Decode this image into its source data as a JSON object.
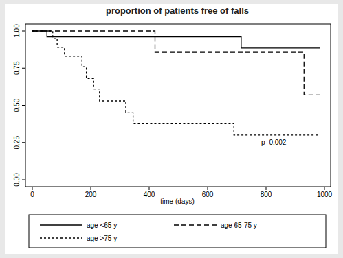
{
  "chart_data": {
    "type": "line",
    "title": "proportion of patients free of falls",
    "x_label": "time (days)",
    "xlim": [
      0,
      1000
    ],
    "ylim": [
      0,
      1
    ],
    "xticks": [
      0,
      200,
      400,
      600,
      800,
      1000
    ],
    "yticks": [
      {
        "value": 0,
        "label": "0.00"
      },
      {
        "value": 0.25,
        "label": "0.25"
      },
      {
        "value": 0.5,
        "label": "0.50"
      },
      {
        "value": 0.75,
        "label": "0.75"
      },
      {
        "value": 1,
        "label": "1.00"
      }
    ],
    "grid": false,
    "legend": "bottom",
    "annotations": [
      "p=0.002"
    ],
    "series": [
      {
        "name": "age <65 y",
        "color": "#000000",
        "line_style": "solid",
        "x": [
          0,
          50,
          715,
          985
        ],
        "values": [
          1,
          0.96,
          0.885,
          0.885
        ]
      },
      {
        "name": "age 65-75 y",
        "color": "#000000",
        "line_style": "dash",
        "x": [
          0,
          420,
          930,
          985
        ],
        "values": [
          1,
          0.857,
          0.57,
          0.57
        ]
      },
      {
        "name": "age >75 y",
        "color": "#000000",
        "line_style": "dot",
        "x": [
          0,
          70,
          85,
          110,
          170,
          185,
          210,
          230,
          320,
          345,
          690,
          985
        ],
        "values": [
          1,
          0.95,
          0.89,
          0.83,
          0.76,
          0.68,
          0.61,
          0.53,
          0.45,
          0.38,
          0.3,
          0.3
        ]
      }
    ]
  }
}
